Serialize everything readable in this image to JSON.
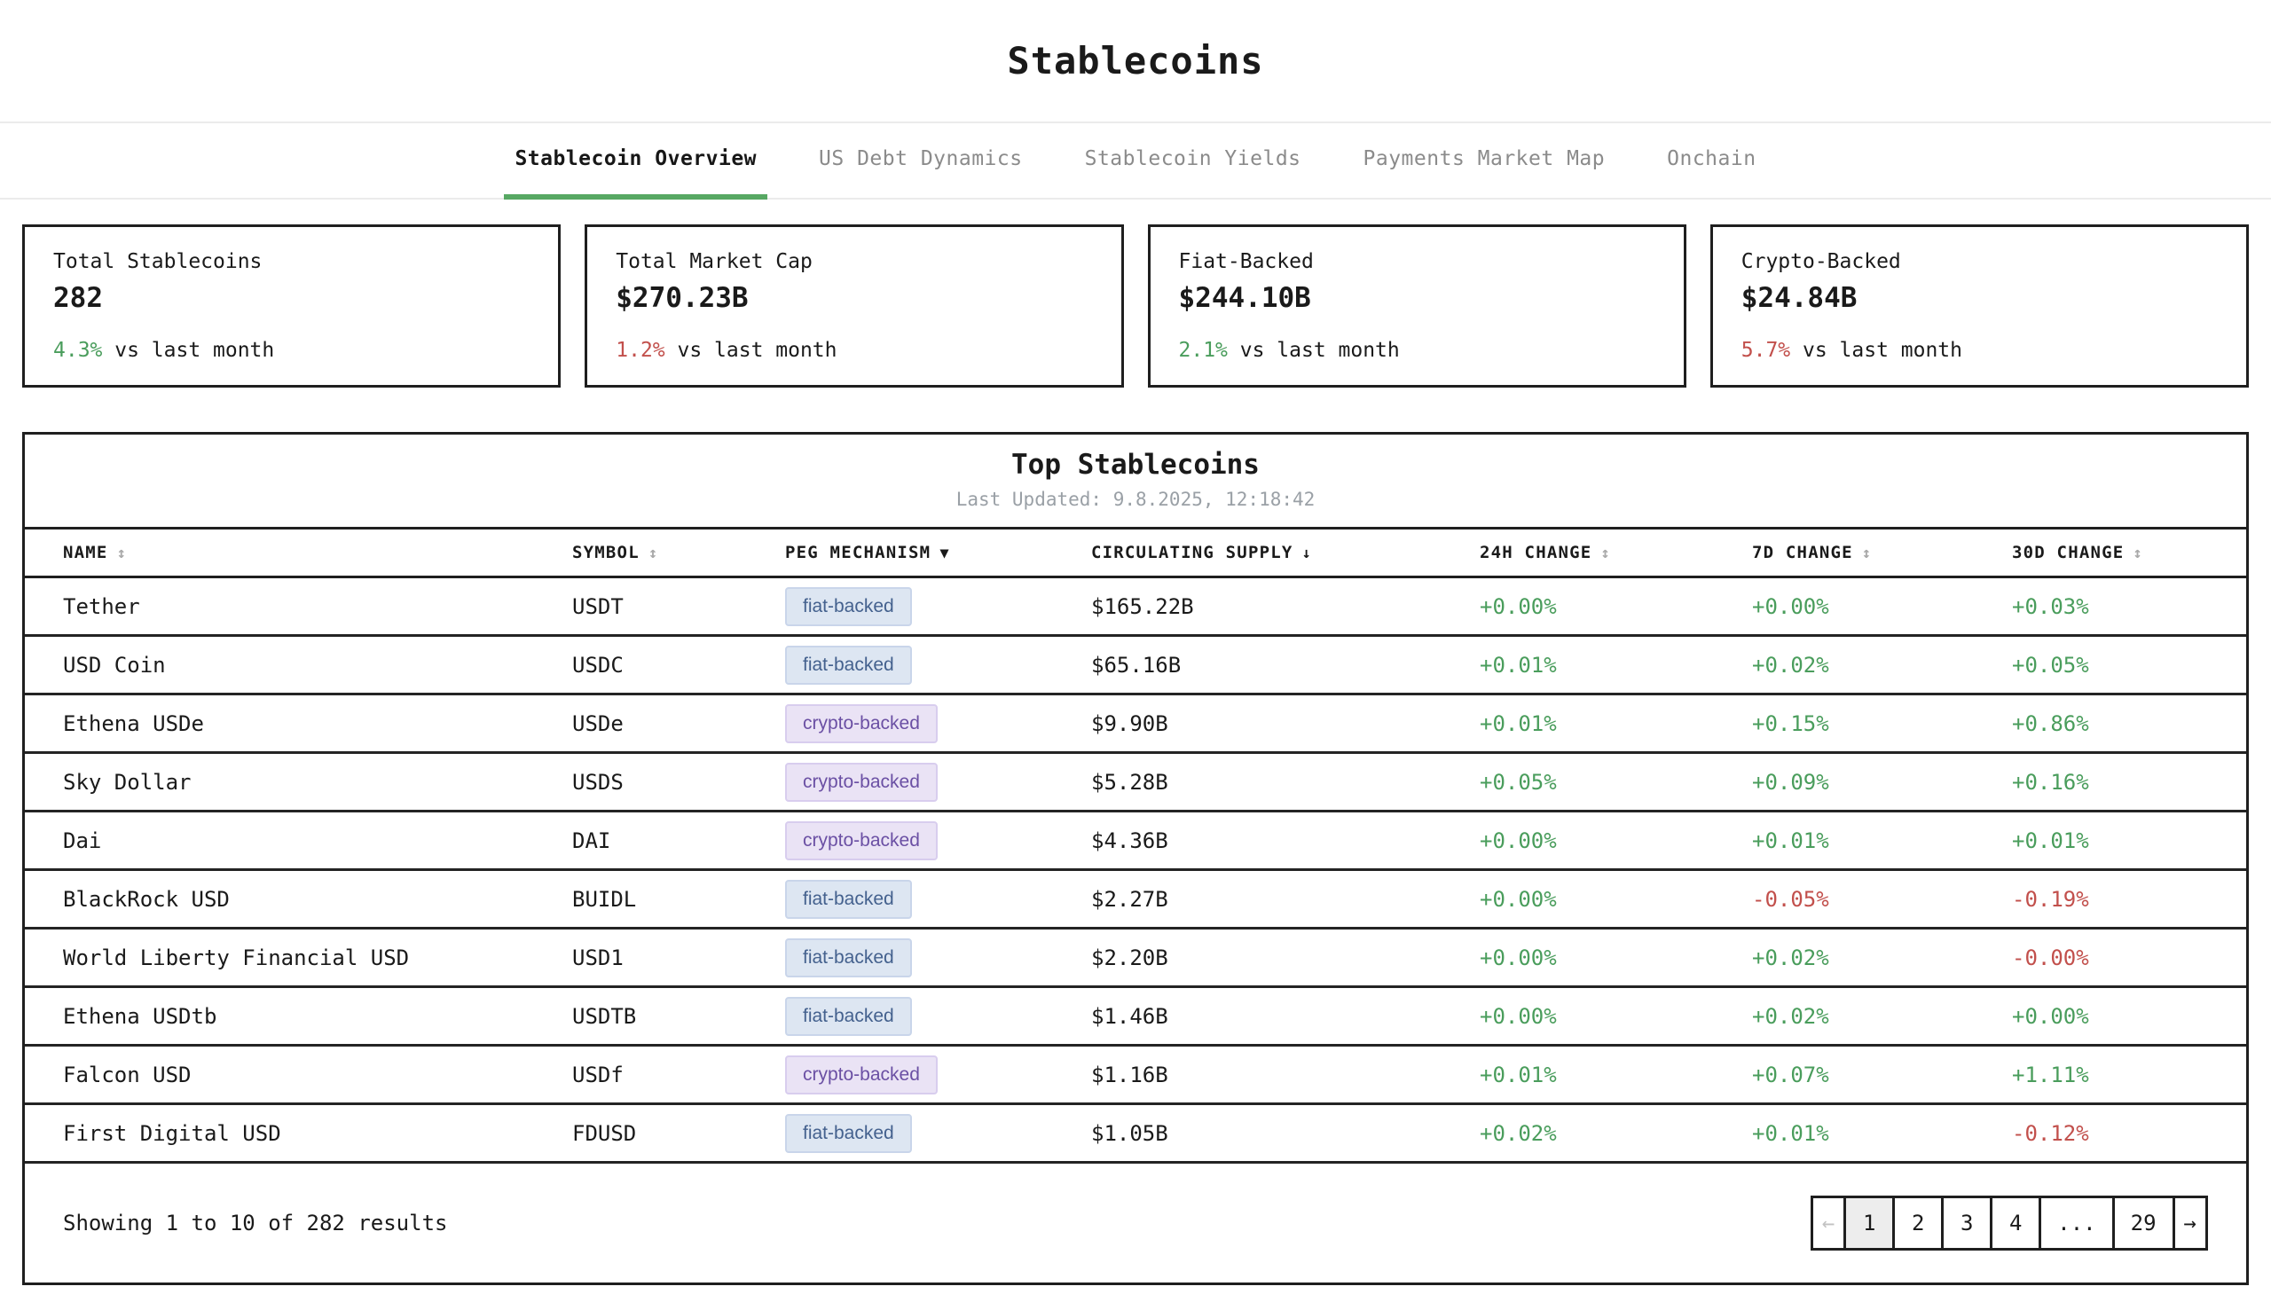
{
  "page": {
    "title": "Stablecoins"
  },
  "tabs": [
    {
      "label": "Stablecoin Overview",
      "active": true
    },
    {
      "label": "US Debt Dynamics",
      "active": false
    },
    {
      "label": "Stablecoin Yields",
      "active": false
    },
    {
      "label": "Payments Market Map",
      "active": false
    },
    {
      "label": "Onchain",
      "active": false
    }
  ],
  "stats": [
    {
      "label": "Total Stablecoins",
      "value": "282",
      "delta_pct": "4.3%",
      "delta_variant": "green",
      "delta_suffix": " vs last month"
    },
    {
      "label": "Total Market Cap",
      "value": "$270.23B",
      "delta_pct": "1.2%",
      "delta_variant": "red",
      "delta_suffix": " vs last month"
    },
    {
      "label": "Fiat-Backed",
      "value": "$244.10B",
      "delta_pct": "2.1%",
      "delta_variant": "green",
      "delta_suffix": " vs last month"
    },
    {
      "label": "Crypto-Backed",
      "value": "$24.84B",
      "delta_pct": "5.7%",
      "delta_variant": "red",
      "delta_suffix": " vs last month"
    }
  ],
  "table": {
    "title": "Top Stablecoins",
    "last_updated": "Last Updated: 9.8.2025, 12:18:42",
    "columns": [
      {
        "label": "NAME",
        "icon": "↕",
        "icon_variant": "muted"
      },
      {
        "label": "SYMBOL",
        "icon": "↕",
        "icon_variant": "muted"
      },
      {
        "label": "PEG MECHANISM",
        "icon": "▼",
        "icon_variant": "solid"
      },
      {
        "label": "CIRCULATING SUPPLY",
        "icon": "↓",
        "icon_variant": "solid"
      },
      {
        "label": "24H CHANGE",
        "icon": "↕",
        "icon_variant": "muted"
      },
      {
        "label": "7D CHANGE",
        "icon": "↕",
        "icon_variant": "muted"
      },
      {
        "label": "30D CHANGE",
        "icon": "↕",
        "icon_variant": "muted"
      }
    ],
    "rows": [
      {
        "name": "Tether",
        "symbol": "USDT",
        "peg": "fiat-backed",
        "supply": "$165.22B",
        "change_24h": "+0.00%",
        "change_7d": "+0.00%",
        "change_30d": "+0.03%"
      },
      {
        "name": "USD Coin",
        "symbol": "USDC",
        "peg": "fiat-backed",
        "supply": "$65.16B",
        "change_24h": "+0.01%",
        "change_7d": "+0.02%",
        "change_30d": "+0.05%"
      },
      {
        "name": "Ethena USDe",
        "symbol": "USDe",
        "peg": "crypto-backed",
        "supply": "$9.90B",
        "change_24h": "+0.01%",
        "change_7d": "+0.15%",
        "change_30d": "+0.86%"
      },
      {
        "name": "Sky Dollar",
        "symbol": "USDS",
        "peg": "crypto-backed",
        "supply": "$5.28B",
        "change_24h": "+0.05%",
        "change_7d": "+0.09%",
        "change_30d": "+0.16%"
      },
      {
        "name": "Dai",
        "symbol": "DAI",
        "peg": "crypto-backed",
        "supply": "$4.36B",
        "change_24h": "+0.00%",
        "change_7d": "+0.01%",
        "change_30d": "+0.01%"
      },
      {
        "name": "BlackRock USD",
        "symbol": "BUIDL",
        "peg": "fiat-backed",
        "supply": "$2.27B",
        "change_24h": "+0.00%",
        "change_7d": "-0.05%",
        "change_30d": "-0.19%"
      },
      {
        "name": "World Liberty Financial USD",
        "symbol": "USD1",
        "peg": "fiat-backed",
        "supply": "$2.20B",
        "change_24h": "+0.00%",
        "change_7d": "+0.02%",
        "change_30d": "-0.00%"
      },
      {
        "name": "Ethena USDtb",
        "symbol": "USDTB",
        "peg": "fiat-backed",
        "supply": "$1.46B",
        "change_24h": "+0.00%",
        "change_7d": "+0.02%",
        "change_30d": "+0.00%"
      },
      {
        "name": "Falcon USD",
        "symbol": "USDf",
        "peg": "crypto-backed",
        "supply": "$1.16B",
        "change_24h": "+0.01%",
        "change_7d": "+0.07%",
        "change_30d": "+1.11%"
      },
      {
        "name": "First Digital USD",
        "symbol": "FDUSD",
        "peg": "fiat-backed",
        "supply": "$1.05B",
        "change_24h": "+0.02%",
        "change_7d": "+0.01%",
        "change_30d": "-0.12%"
      }
    ],
    "footer": {
      "showing": "Showing 1 to 10 of 282 results",
      "pages": [
        {
          "label": "←",
          "name": "prev-page-button",
          "kind": "arrow",
          "state": "disabled",
          "interactable": false
        },
        {
          "label": "1",
          "name": "page-1-button",
          "state": "active",
          "interactable": true
        },
        {
          "label": "2",
          "name": "page-2-button",
          "interactable": true
        },
        {
          "label": "3",
          "name": "page-3-button",
          "interactable": true
        },
        {
          "label": "4",
          "name": "page-4-button",
          "interactable": true
        },
        {
          "label": "...",
          "name": "page-ellipsis",
          "interactable": false
        },
        {
          "label": "29",
          "name": "page-29-button",
          "interactable": true
        },
        {
          "label": "→",
          "name": "next-page-button",
          "kind": "arrow",
          "interactable": true
        }
      ]
    }
  },
  "colors": {
    "accent_green_underline": "#57a863",
    "positive_green": "#4a9d5c",
    "negative_red": "#c2504c",
    "fiat_badge_bg": "#dde6f2",
    "fiat_badge_text": "#44618e",
    "crypto_badge_bg": "#eae3f5",
    "crypto_badge_text": "#6b50a4",
    "muted_gray": "#9aa0a6",
    "border_dark": "#1f1f1f"
  }
}
